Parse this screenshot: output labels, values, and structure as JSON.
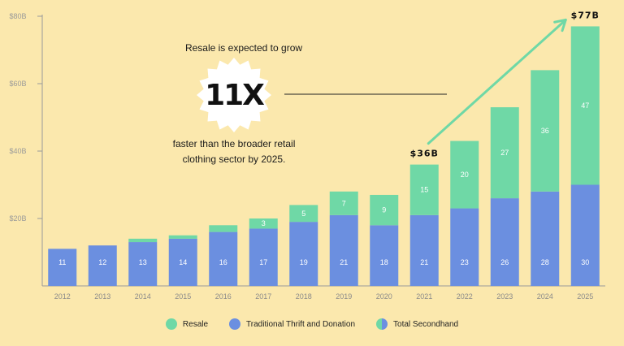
{
  "colors": {
    "background": "#fbe8ad",
    "resale": "#6fd8a6",
    "thrift": "#6b8fe0",
    "arrow": "#6fd8a6",
    "text": "#1a1a1a"
  },
  "callout": {
    "top_text": "Resale is expected to grow",
    "multiplier": "11X",
    "bottom_text_line1": "faster than the broader retail",
    "bottom_text_line2": "clothing sector by 2025."
  },
  "legend": {
    "resale": "Resale",
    "thrift": "Traditional Thrift and Donation",
    "total": "Total Secondhand"
  },
  "chart_data": {
    "type": "bar",
    "stacked": true,
    "categories": [
      "2012",
      "2013",
      "2014",
      "2015",
      "2016",
      "2017",
      "2018",
      "2019",
      "2020",
      "2021",
      "2022",
      "2023",
      "2024",
      "2025"
    ],
    "series": [
      {
        "name": "Traditional Thrift and Donation",
        "values": [
          11,
          12,
          13,
          14,
          16,
          17,
          19,
          21,
          18,
          21,
          23,
          26,
          28,
          30
        ]
      },
      {
        "name": "Resale",
        "values": [
          0,
          0,
          1,
          1,
          2,
          3,
          5,
          7,
          9,
          15,
          20,
          27,
          36,
          47
        ]
      }
    ],
    "value_labels": {
      "thrift": [
        "11",
        "12",
        "13",
        "14",
        "16",
        "17",
        "19",
        "21",
        "18",
        "21",
        "23",
        "26",
        "28",
        "30"
      ],
      "resale": [
        "",
        "",
        "",
        "",
        "",
        "3",
        "5",
        "7",
        "9",
        "15",
        "20",
        "27",
        "36",
        "47"
      ]
    },
    "total_labels": [
      {
        "category": "2021",
        "text": "$36B"
      },
      {
        "category": "2025",
        "text": "$77B"
      }
    ],
    "yticks": [
      {
        "value": 20,
        "label": "$20B"
      },
      {
        "value": 40,
        "label": "$40B"
      },
      {
        "value": 60,
        "label": "$60B"
      },
      {
        "value": 80,
        "label": "$80B"
      }
    ],
    "ylim": [
      0,
      80
    ],
    "grid": false,
    "legend_position": "bottom"
  }
}
